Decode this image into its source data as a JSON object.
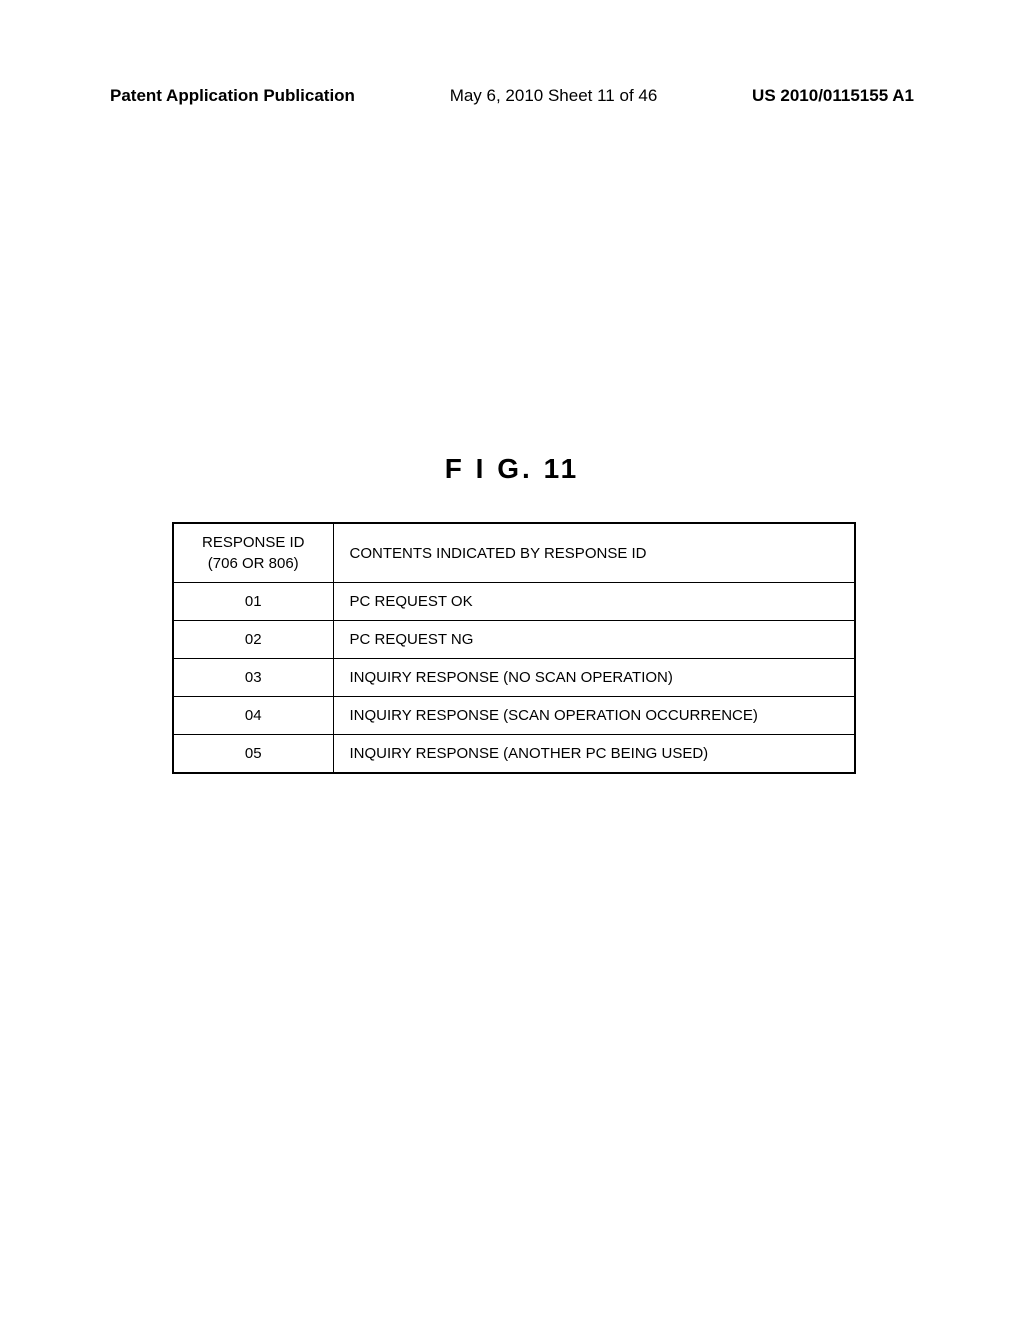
{
  "header": {
    "left": "Patent Application Publication",
    "center": "May 6, 2010  Sheet 11 of 46",
    "right": "US 2010/0115155 A1"
  },
  "figure": {
    "label": "F I G.  11"
  },
  "table": {
    "columns": [
      "RESPONSE ID\n(706 OR 806)",
      "CONTENTS INDICATED BY RESPONSE ID"
    ],
    "rows": [
      {
        "id": "01",
        "contents": "PC REQUEST OK"
      },
      {
        "id": "02",
        "contents": "PC REQUEST NG"
      },
      {
        "id": "03",
        "contents": "INQUIRY RESPONSE (NO SCAN OPERATION)"
      },
      {
        "id": "04",
        "contents": "INQUIRY RESPONSE (SCAN OPERATION OCCURRENCE)"
      },
      {
        "id": "05",
        "contents": "INQUIRY RESPONSE (ANOTHER PC BEING USED)"
      }
    ]
  }
}
